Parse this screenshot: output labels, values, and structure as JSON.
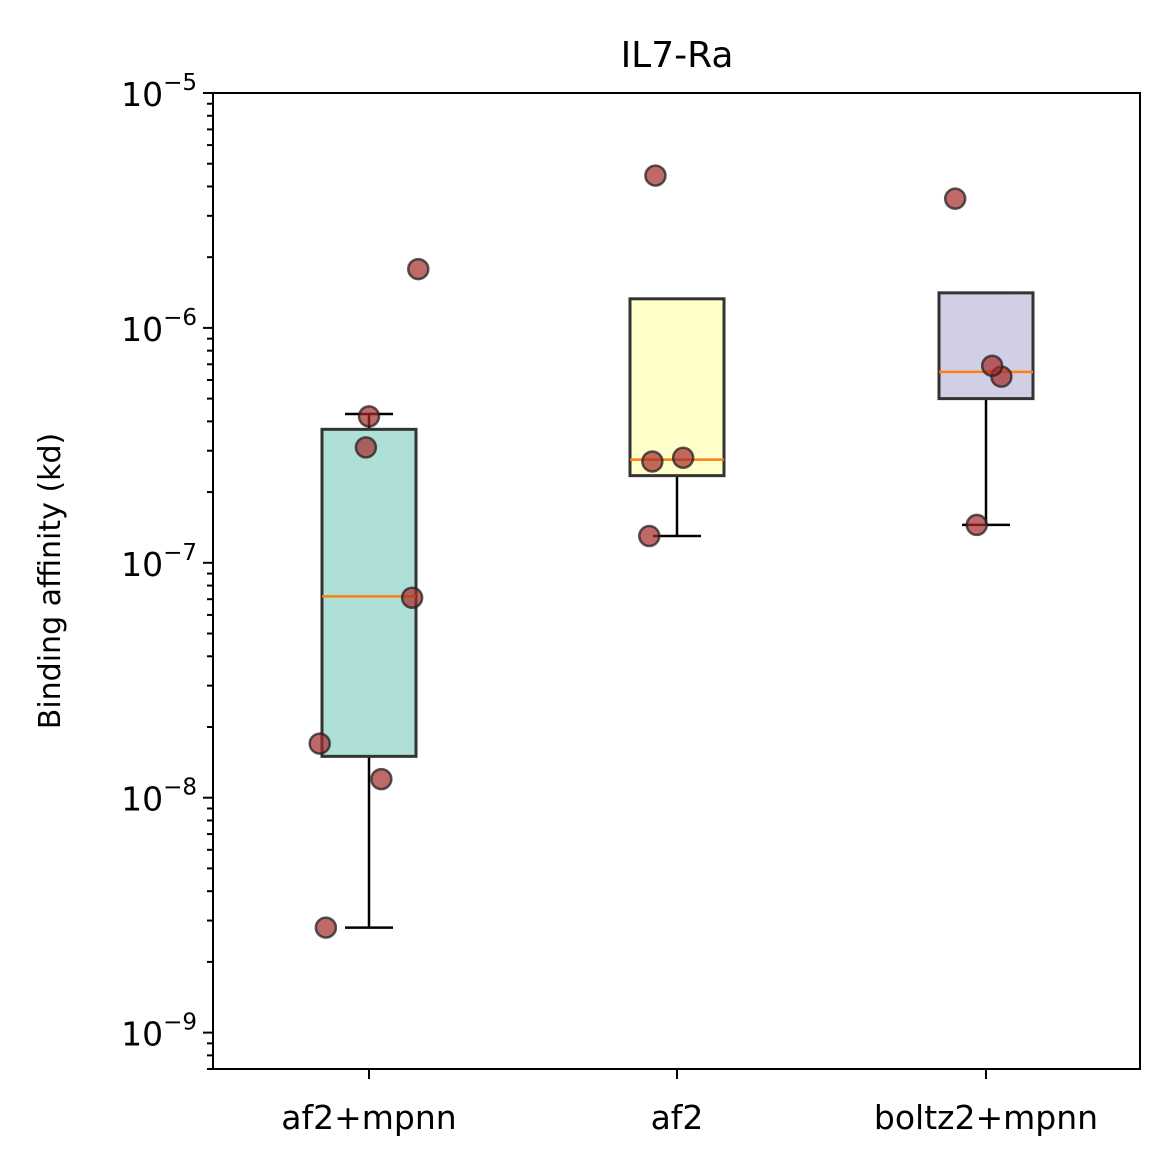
{
  "chart_data": {
    "type": "box",
    "title": "IL7-Ra",
    "ylabel": "Binding affinity (kd)",
    "xlabel": "",
    "yscale": "log",
    "ylim": [
      7e-10,
      1e-05
    ],
    "y_ticks": [
      {
        "value": 1e-09,
        "base": "10",
        "exp": "−9"
      },
      {
        "value": 1e-08,
        "base": "10",
        "exp": "−8"
      },
      {
        "value": 1e-07,
        "base": "10",
        "exp": "−7"
      },
      {
        "value": 1e-06,
        "base": "10",
        "exp": "−6"
      },
      {
        "value": 1e-05,
        "base": "10",
        "exp": "−5"
      }
    ],
    "categories": [
      "af2+mpnn",
      "af2",
      "boltz2+mpnn"
    ],
    "grid": false,
    "point_color": "#a52a2a",
    "median_color": "#ff7f0e",
    "boxes": [
      {
        "category": "af2+mpnn",
        "color": "#8dd3c7",
        "whisker_low": 2.8e-09,
        "q1": 1.5e-08,
        "median": 7.2e-08,
        "q3": 3.7e-07,
        "whisker_high": 4.3e-07
      },
      {
        "category": "af2",
        "color": "#ffffb3",
        "whisker_low": 1.3e-07,
        "q1": 2.35e-07,
        "median": 2.75e-07,
        "q3": 1.33e-06,
        "whisker_high": 1.33e-06
      },
      {
        "category": "boltz2+mpnn",
        "color": "#bebada",
        "whisker_low": 1.45e-07,
        "q1": 5e-07,
        "median": 6.5e-07,
        "q3": 1.41e-06,
        "whisker_high": 1.41e-06
      }
    ],
    "points": [
      {
        "category": "af2+mpnn",
        "jitter": -0.14,
        "y": 2.8e-09
      },
      {
        "category": "af2+mpnn",
        "jitter": -0.16,
        "y": 1.7e-08
      },
      {
        "category": "af2+mpnn",
        "jitter": 0.04,
        "y": 1.2e-08
      },
      {
        "category": "af2+mpnn",
        "jitter": 0.14,
        "y": 7.1e-08
      },
      {
        "category": "af2+mpnn",
        "jitter": -0.01,
        "y": 3.1e-07
      },
      {
        "category": "af2+mpnn",
        "jitter": 0.0,
        "y": 4.2e-07
      },
      {
        "category": "af2+mpnn",
        "jitter": 0.16,
        "y": 1.78e-06
      },
      {
        "category": "af2",
        "jitter": -0.09,
        "y": 1.3e-07
      },
      {
        "category": "af2",
        "jitter": -0.08,
        "y": 2.7e-07
      },
      {
        "category": "af2",
        "jitter": 0.02,
        "y": 2.8e-07
      },
      {
        "category": "af2",
        "jitter": -0.07,
        "y": 4.45e-06
      },
      {
        "category": "boltz2+mpnn",
        "jitter": -0.03,
        "y": 1.45e-07
      },
      {
        "category": "boltz2+mpnn",
        "jitter": 0.05,
        "y": 6.2e-07
      },
      {
        "category": "boltz2+mpnn",
        "jitter": 0.02,
        "y": 6.9e-07
      },
      {
        "category": "boltz2+mpnn",
        "jitter": -0.1,
        "y": 3.55e-06
      }
    ]
  }
}
